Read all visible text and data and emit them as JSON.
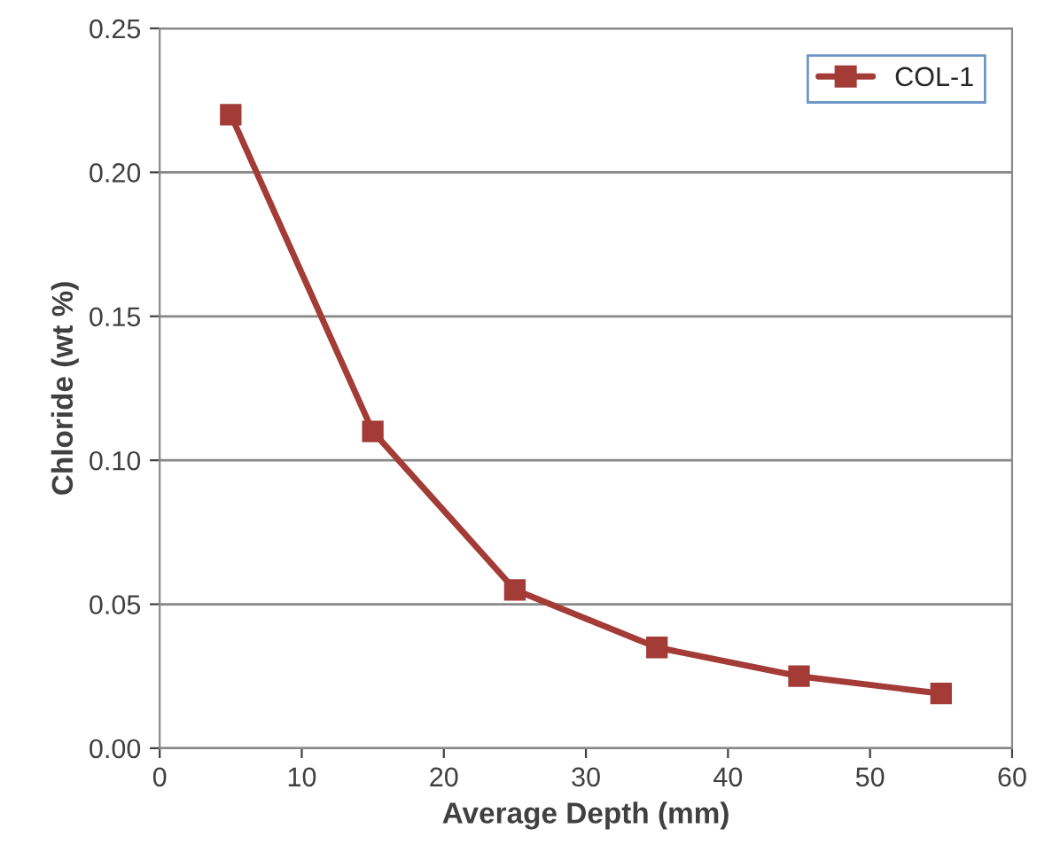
{
  "chart_data": {
    "type": "line",
    "xlabel": "Average Depth (mm)",
    "ylabel": "Chloride (wt %)",
    "x": [
      5,
      15,
      25,
      35,
      45,
      55
    ],
    "series": [
      {
        "name": "COL-1",
        "color": "#a33b36",
        "values": [
          0.22,
          0.11,
          0.055,
          0.035,
          0.025,
          0.019
        ]
      }
    ],
    "xlim": [
      0,
      60
    ],
    "xticks": [
      0,
      10,
      20,
      30,
      40,
      50,
      60
    ],
    "ylim": [
      0,
      0.25
    ],
    "yticks": [
      {
        "value": 0,
        "label": "0.00"
      },
      {
        "value": 0.05,
        "label": "0.05"
      },
      {
        "value": 0.1,
        "label": "0.10"
      },
      {
        "value": 0.15,
        "label": "0.15"
      },
      {
        "value": 0.2,
        "label": "0.20"
      },
      {
        "value": 0.25,
        "label": "0.25"
      }
    ],
    "grid": "y",
    "legend": "top right",
    "marker": "square",
    "line_style": "solid"
  }
}
